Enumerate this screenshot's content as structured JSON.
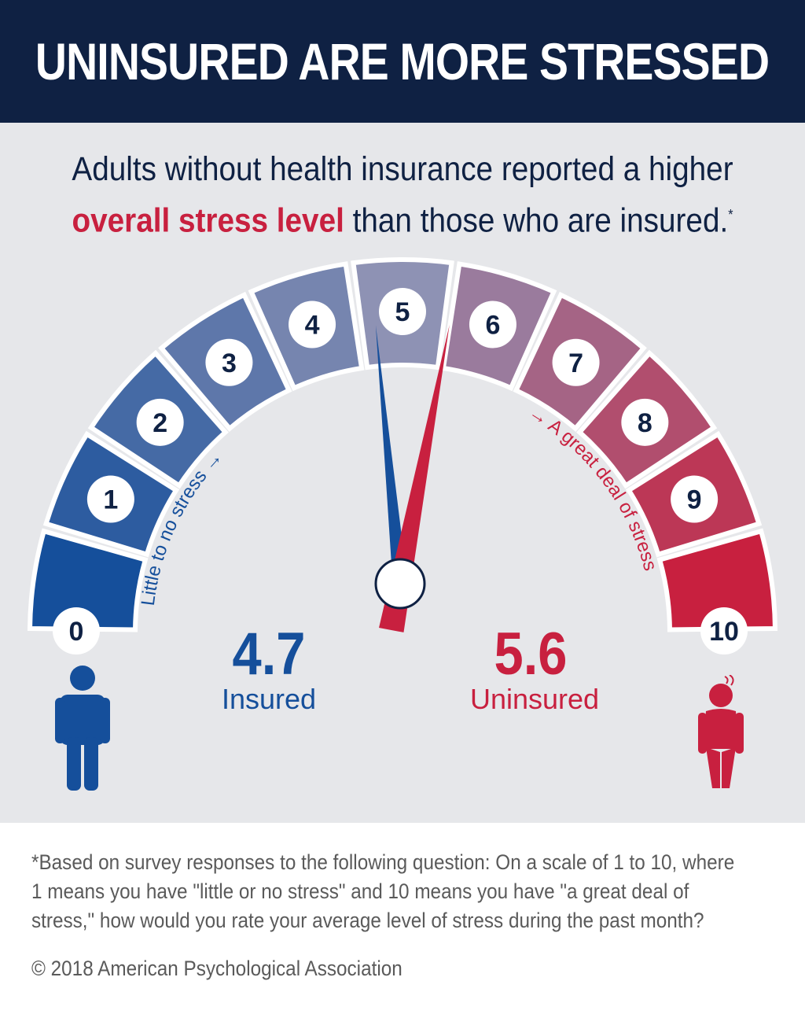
{
  "header": {
    "title": "UNINSURED ARE MORE STRESSED"
  },
  "subtitle": {
    "line1": "Adults without health insurance reported a higher",
    "highlight": "overall stress level",
    "rest": " than those who are insured.",
    "mark": "*"
  },
  "colors": {
    "header_bg": "#0f2143",
    "insured": "#154f9b",
    "uninsured": "#c8203f",
    "panel_bg": "#e6e7ea"
  },
  "chart_data": {
    "type": "gauge",
    "scale_min": 0,
    "scale_max": 10,
    "tick_labels": [
      "0",
      "1",
      "2",
      "3",
      "4",
      "5",
      "6",
      "7",
      "8",
      "9",
      "10"
    ],
    "low_label": "Little to no stress →",
    "high_label": "→ A great deal of stress",
    "series": [
      {
        "name": "Insured",
        "value": 4.7,
        "display": "4.7",
        "color": "#154f9b"
      },
      {
        "name": "Uninsured",
        "value": 5.6,
        "display": "5.6",
        "color": "#c8203f"
      }
    ]
  },
  "icons": {
    "insured": "person-standing-icon",
    "uninsured": "person-stressed-icon"
  },
  "footnote": "*Based on survey responses to the following question: On a scale of 1 to 10, where 1 means you have \"little or no stress\" and 10 means you have \"a great deal of stress,\" how would you rate your average level of stress during the past month?",
  "copyright": "© 2018 American Psychological Association"
}
